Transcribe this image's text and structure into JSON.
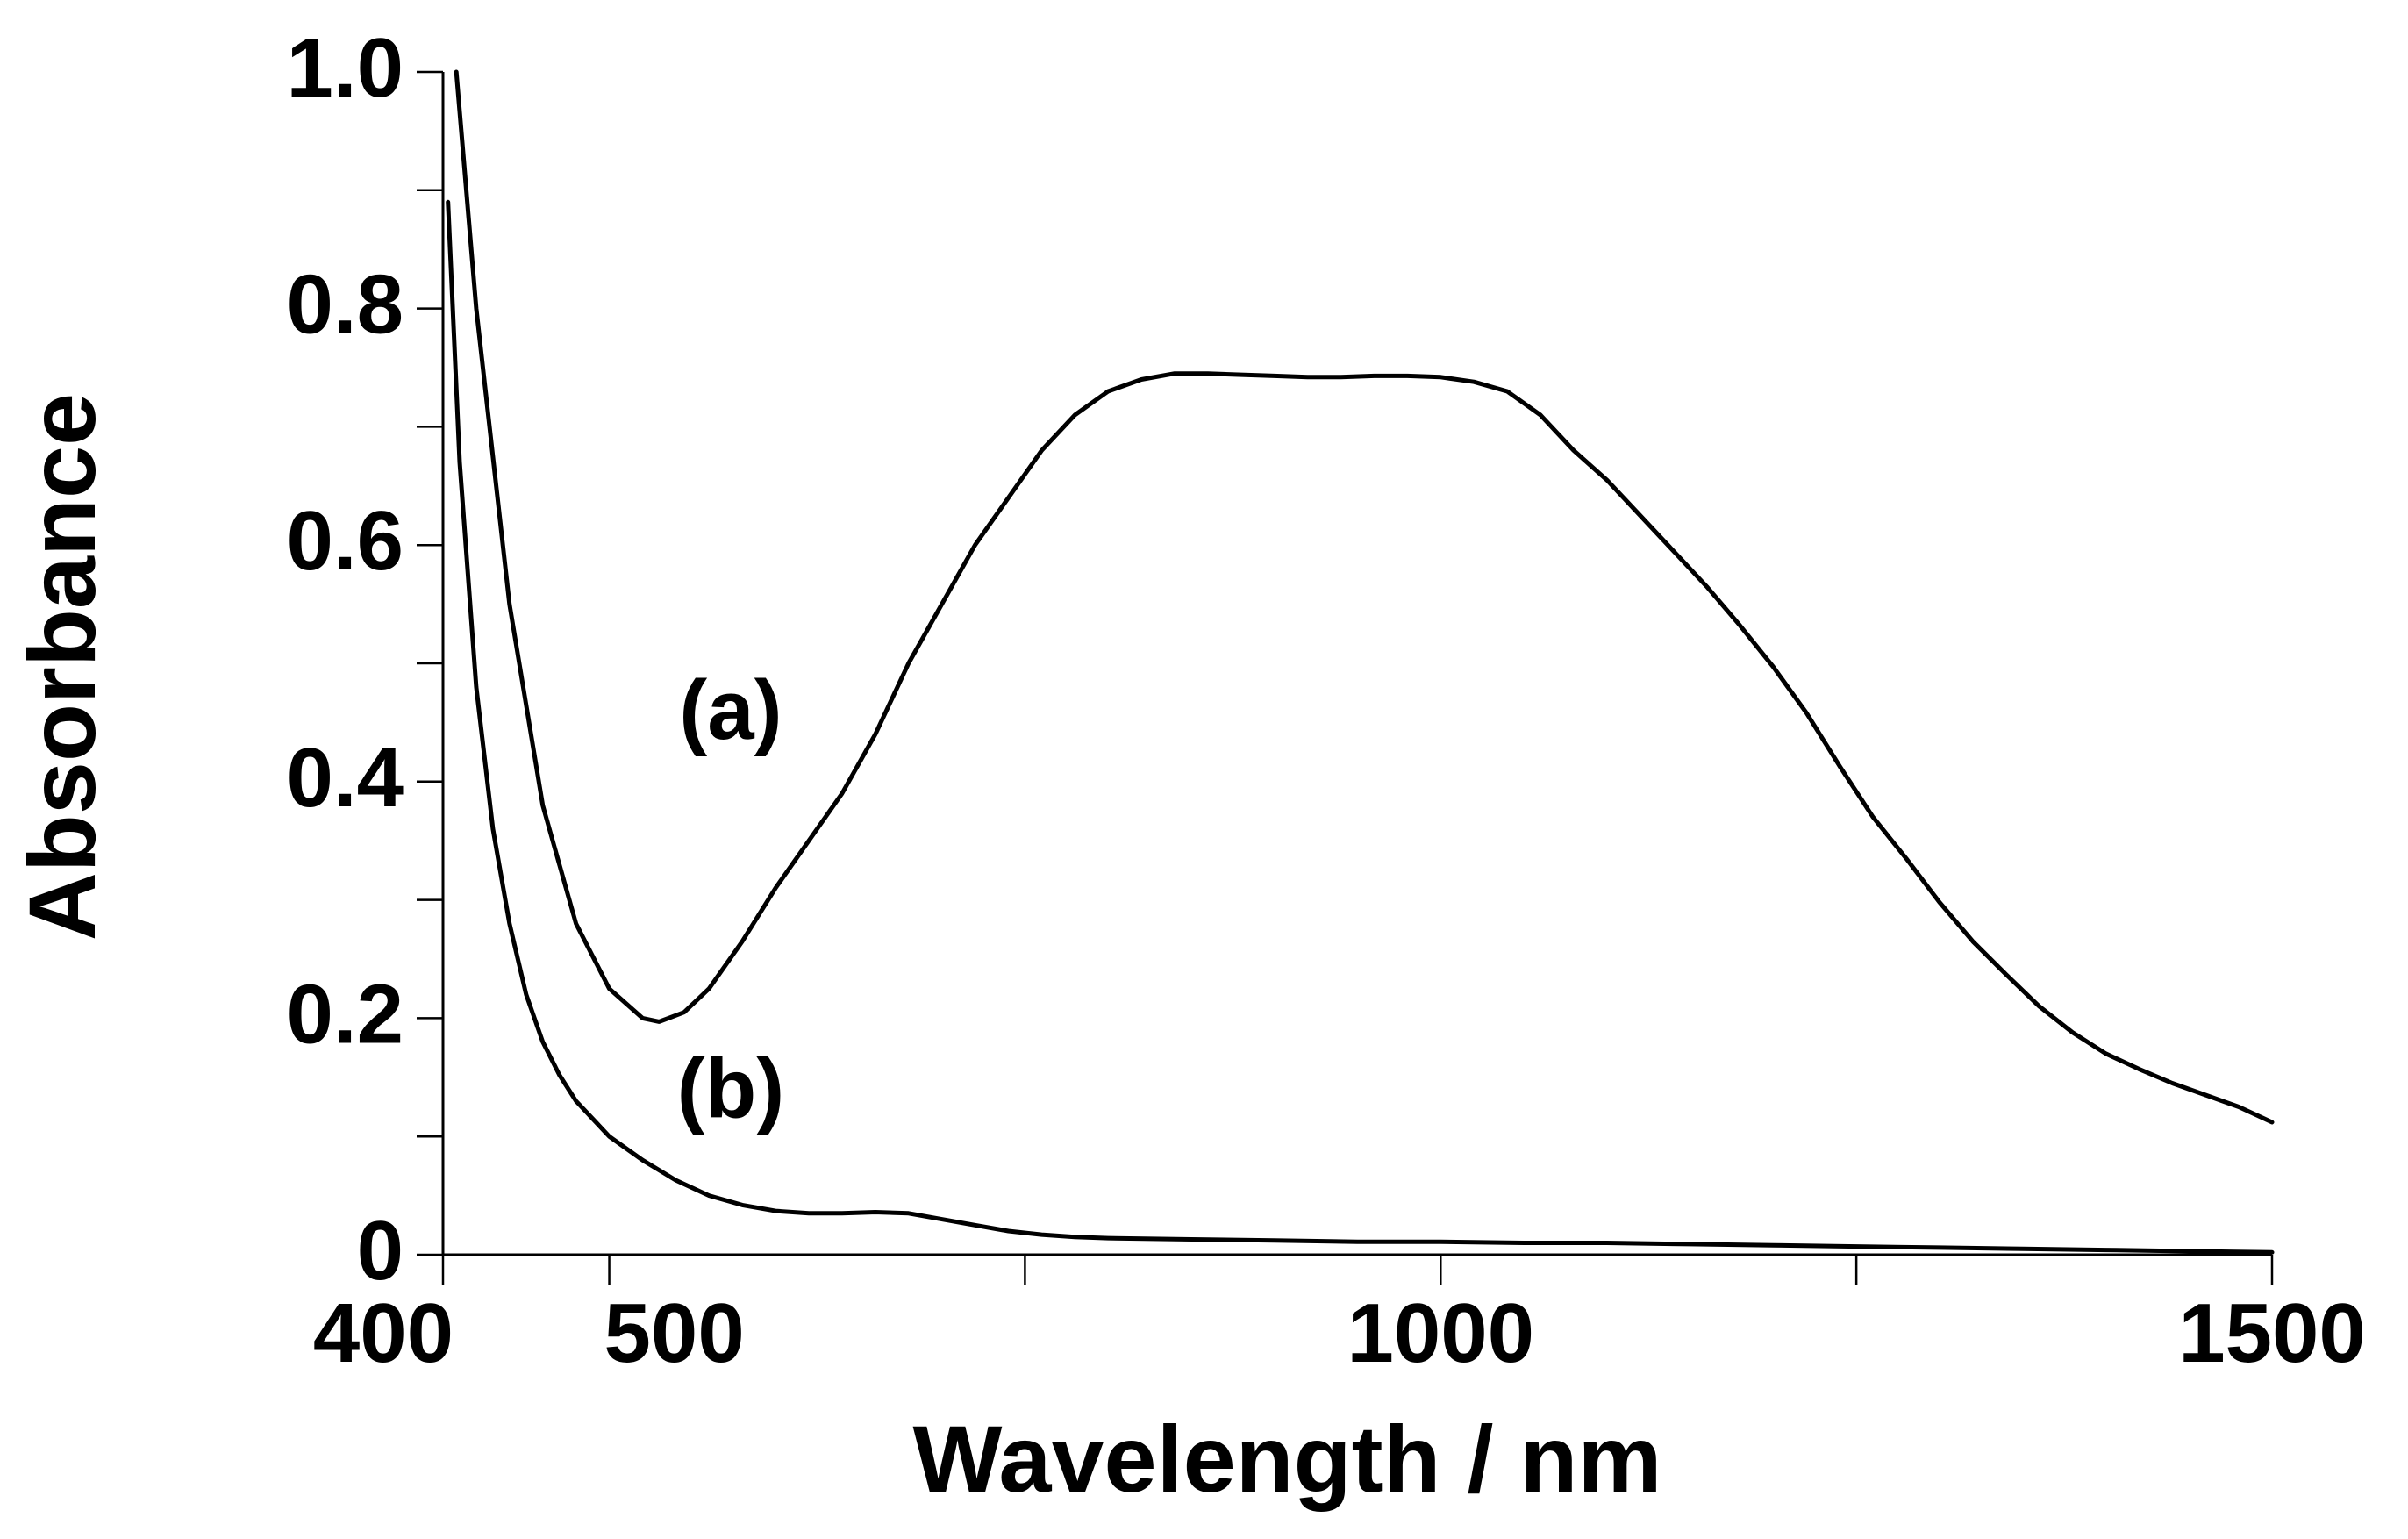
{
  "chart_data": {
    "type": "line",
    "title": "",
    "xlabel": "Wavelength / nm",
    "ylabel": "Absorbance",
    "xlim": [
      400,
      1500
    ],
    "ylim": [
      0,
      1.0
    ],
    "grid": false,
    "x_tick_labels": [
      {
        "value": 400,
        "label": "400"
      },
      {
        "value": 500,
        "label": "500"
      },
      {
        "value": 1000,
        "label": "1000"
      },
      {
        "value": 1500,
        "label": "1500"
      }
    ],
    "x_minor_ticks": [
      400,
      500,
      750,
      1000,
      1250,
      1500
    ],
    "y_tick_labels": [
      {
        "value": 0,
        "label": "0"
      },
      {
        "value": 0.2,
        "label": "0.2"
      },
      {
        "value": 0.4,
        "label": "0.4"
      },
      {
        "value": 0.6,
        "label": "0.6"
      },
      {
        "value": 0.8,
        "label": "0.8"
      },
      {
        "value": 1.0,
        "label": "1.0"
      }
    ],
    "y_minor_ticks": [
      0.1,
      0.3,
      0.5,
      0.7,
      0.9
    ],
    "series": [
      {
        "name": "(a)",
        "label": "(a)",
        "label_at": {
          "x": 573,
          "y": 0.46
        },
        "x": [
          408,
          420,
          440,
          460,
          480,
          500,
          520,
          530,
          545,
          560,
          580,
          600,
          620,
          640,
          660,
          680,
          700,
          720,
          740,
          760,
          780,
          800,
          820,
          840,
          860,
          880,
          900,
          920,
          940,
          960,
          980,
          1000,
          1020,
          1040,
          1060,
          1080,
          1100,
          1120,
          1140,
          1160,
          1180,
          1200,
          1220,
          1240,
          1260,
          1280,
          1300,
          1320,
          1340,
          1360,
          1380,
          1400,
          1420,
          1440,
          1460,
          1480,
          1500
        ],
        "values": [
          1.0,
          0.8,
          0.55,
          0.38,
          0.28,
          0.225,
          0.2,
          0.197,
          0.205,
          0.225,
          0.265,
          0.31,
          0.35,
          0.39,
          0.44,
          0.5,
          0.55,
          0.6,
          0.64,
          0.68,
          0.71,
          0.73,
          0.74,
          0.745,
          0.745,
          0.744,
          0.743,
          0.742,
          0.742,
          0.743,
          0.743,
          0.742,
          0.738,
          0.73,
          0.71,
          0.68,
          0.655,
          0.625,
          0.595,
          0.565,
          0.532,
          0.497,
          0.458,
          0.413,
          0.37,
          0.335,
          0.298,
          0.265,
          0.237,
          0.21,
          0.188,
          0.17,
          0.157,
          0.145,
          0.135,
          0.125,
          0.112
        ]
      },
      {
        "name": "(b)",
        "label": "(b)",
        "label_at": {
          "x": 573,
          "y": 0.14
        },
        "x": [
          403,
          410,
          420,
          430,
          440,
          450,
          460,
          470,
          480,
          490,
          500,
          520,
          540,
          560,
          580,
          600,
          620,
          640,
          660,
          680,
          700,
          720,
          740,
          760,
          780,
          800,
          850,
          900,
          950,
          1000,
          1050,
          1100,
          1150,
          1200,
          1250,
          1300,
          1350,
          1400,
          1450,
          1500
        ],
        "values": [
          0.89,
          0.67,
          0.48,
          0.36,
          0.28,
          0.22,
          0.18,
          0.152,
          0.13,
          0.115,
          0.1,
          0.08,
          0.063,
          0.05,
          0.042,
          0.037,
          0.035,
          0.035,
          0.036,
          0.035,
          0.03,
          0.025,
          0.02,
          0.017,
          0.015,
          0.014,
          0.013,
          0.012,
          0.011,
          0.011,
          0.01,
          0.01,
          0.009,
          0.008,
          0.007,
          0.006,
          0.005,
          0.004,
          0.003,
          0.002
        ]
      }
    ]
  }
}
